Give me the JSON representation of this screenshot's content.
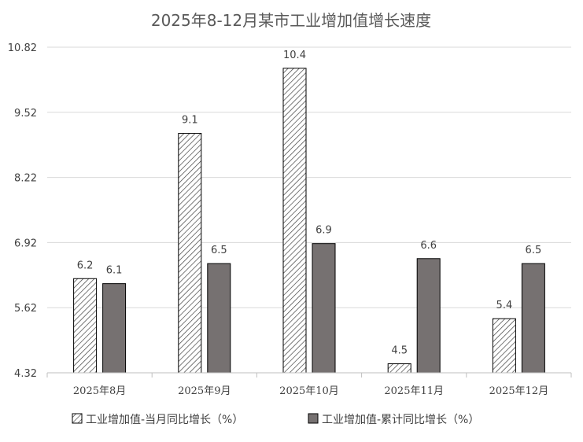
{
  "chart_data": {
    "type": "bar",
    "title": "2025年8-12月某市工业增加值增长速度",
    "categories": [
      "2025年8月",
      "2025年9月",
      "2025年10月",
      "2025年11月",
      "2025年12月"
    ],
    "series": [
      {
        "name": "工业增加值-当月同比增长（%）",
        "values": [
          6.2,
          9.1,
          10.4,
          4.5,
          5.4
        ],
        "pattern": "hatch",
        "color": "#404040"
      },
      {
        "name": "工业增加值-累计同比增长（%）",
        "values": [
          6.1,
          6.5,
          6.9,
          6.6,
          6.5
        ],
        "pattern": "solid",
        "color": "#767171"
      }
    ],
    "ylim": [
      4.32,
      10.82
    ],
    "yticks": [
      "4.32",
      "5.62",
      "6.92",
      "8.22",
      "9.52",
      "10.82"
    ],
    "grid": true,
    "legend_position": "bottom",
    "xlabel": "",
    "ylabel": ""
  }
}
